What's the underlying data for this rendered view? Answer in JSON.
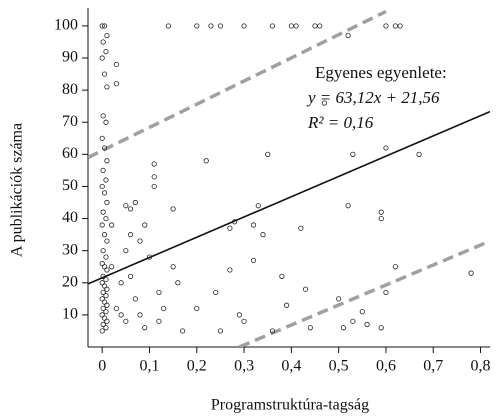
{
  "chart_data": {
    "type": "scatter",
    "x_label": "Programstruktúra-tagság",
    "y_label": "A publikációk száma",
    "annotations": [
      "Egyenes egyenlete:",
      "y = 63,12x + 21,56",
      "R² = 0,16"
    ],
    "xlim": [
      -0.03,
      0.82
    ],
    "ylim": [
      0,
      103.4
    ],
    "xticks": [
      0,
      {
        "value": 0.1,
        "label": "0,1"
      },
      {
        "value": 0.2,
        "label": "0,2"
      },
      {
        "value": 0.3,
        "label": "0,3"
      },
      {
        "value": 0.4,
        "label": "0,4"
      },
      {
        "value": 0.5,
        "label": "0,5"
      },
      {
        "value": 0.6,
        "label": "0,6"
      },
      {
        "value": 0.7,
        "label": "0,7"
      },
      {
        "value": 0.8,
        "label": "0,8"
      }
    ],
    "yticks": [
      10,
      20,
      30,
      40,
      50,
      60,
      70,
      80,
      90,
      100
    ],
    "fit": {
      "slope": 63.12,
      "intercept": 21.56,
      "color": "#111111"
    },
    "bounds": [
      {
        "x": [
          -0.03,
          0.6
        ],
        "y": [
          59,
          104.5
        ]
      },
      {
        "x": [
          0.29,
          0.82
        ],
        "y": [
          0,
          33
        ]
      }
    ],
    "bounds_color": "#a0a0a0",
    "marker_color": "#222222",
    "x": [
      0,
      0.005,
      0.01,
      0.002,
      0.008,
      0,
      0.005,
      0.01,
      0.002,
      0.008,
      0,
      0.005,
      0.01,
      0.002,
      0.008,
      0,
      0.005,
      0.01,
      0.002,
      0.008,
      0,
      0.005,
      0.01,
      0.002,
      0.008,
      0,
      0.005,
      0.01,
      0.002,
      0.008,
      0,
      0.005,
      0.01,
      0.002,
      0.008,
      0,
      0.005,
      0.01,
      0.002,
      0.008,
      0,
      0.005,
      0.01,
      0.002,
      0.008,
      0,
      0.02,
      0.02,
      0.03,
      0.03,
      0.03,
      0.04,
      0.04,
      0.05,
      0.05,
      0.05,
      0.06,
      0.06,
      0.06,
      0.07,
      0.07,
      0.08,
      0.08,
      0.09,
      0.09,
      0.1,
      0.11,
      0.11,
      0.11,
      0.12,
      0.12,
      0.13,
      0.14,
      0.15,
      0.15,
      0.16,
      0.17,
      0.2,
      0.2,
      0.22,
      0.23,
      0.24,
      0.25,
      0.25,
      0.27,
      0.27,
      0.28,
      0.29,
      0.3,
      0.3,
      0.32,
      0.32,
      0.33,
      0.34,
      0.35,
      0.36,
      0.36,
      0.38,
      0.39,
      0.4,
      0.41,
      0.42,
      0.43,
      0.44,
      0.45,
      0.46,
      0.5,
      0.51,
      0.52,
      0.53,
      0.53,
      0.55,
      0.56,
      0.59,
      0.59,
      0.59,
      0.6,
      0.6,
      0.6,
      0.62,
      0.62,
      0.63,
      0.67,
      0.78,
      0.47,
      0.52
    ],
    "y": [
      100,
      100,
      97,
      95,
      92,
      90,
      85,
      81,
      72,
      70,
      65,
      62,
      58,
      55,
      52,
      50,
      48,
      45,
      42,
      40,
      38,
      35,
      33,
      30,
      28,
      26,
      25,
      24,
      22,
      21,
      20,
      19,
      18,
      17,
      16,
      15,
      14,
      13,
      12,
      11,
      10,
      9,
      8,
      7,
      6,
      5,
      38,
      25,
      88,
      82,
      12,
      20,
      10,
      44,
      30,
      8,
      43,
      35,
      22,
      45,
      15,
      33,
      10,
      38,
      6,
      28,
      57,
      53,
      50,
      17,
      8,
      12,
      100,
      43,
      25,
      20,
      5,
      100,
      12,
      58,
      100,
      17,
      100,
      5,
      24,
      37,
      39,
      10,
      100,
      8,
      38,
      27,
      44,
      35,
      60,
      100,
      5,
      22,
      13,
      100,
      100,
      37,
      18,
      6,
      100,
      100,
      15,
      6,
      44,
      60,
      8,
      11,
      7,
      42,
      40,
      6,
      62,
      17,
      100,
      100,
      25,
      100,
      60,
      23,
      76,
      97
    ]
  }
}
